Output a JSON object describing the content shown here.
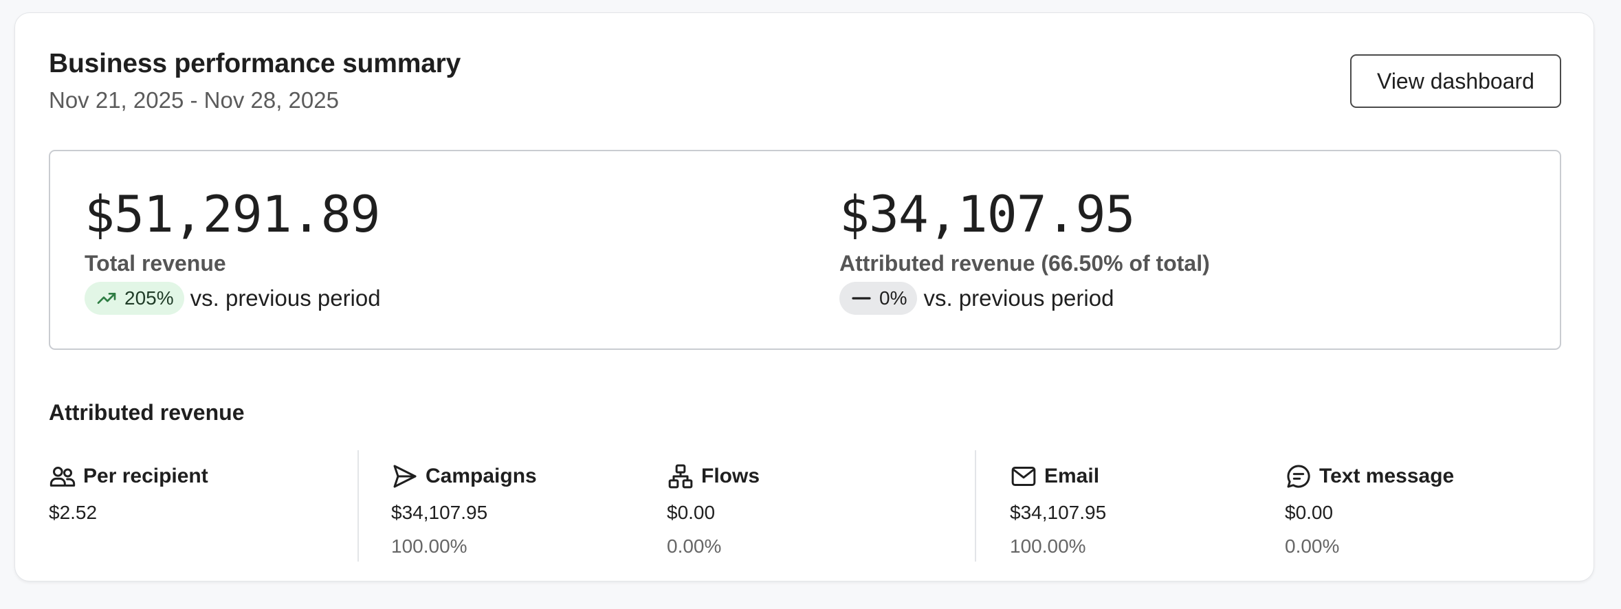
{
  "header": {
    "title": "Business performance summary",
    "date_range": "Nov 21, 2025 - Nov 28, 2025",
    "view_button_label": "View dashboard"
  },
  "summary": {
    "total": {
      "value": "$51,291.89",
      "label": "Total revenue",
      "change": "205%",
      "change_icon": "trend-up-icon",
      "change_color": "#e2f6e6",
      "compare_text": "vs. previous period"
    },
    "attributed": {
      "value": "$34,107.95",
      "label": "Attributed revenue (66.50% of total)",
      "change": "0%",
      "change_icon": "dash-icon",
      "change_color": "#e8e9eb",
      "compare_text": "vs. previous period"
    }
  },
  "attributed_section": {
    "title": "Attributed revenue",
    "stats": [
      {
        "label": "Per recipient",
        "icon": "users-icon",
        "value": "$2.52",
        "percent": ""
      },
      {
        "label": "Campaigns",
        "icon": "send-icon",
        "value": "$34,107.95",
        "percent": "100.00%"
      },
      {
        "label": "Flows",
        "icon": "flow-icon",
        "value": "$0.00",
        "percent": "0.00%"
      },
      {
        "label": "Email",
        "icon": "mail-icon",
        "value": "$34,107.95",
        "percent": "100.00%"
      },
      {
        "label": "Text message",
        "icon": "message-icon",
        "value": "$0.00",
        "percent": "0.00%"
      }
    ]
  }
}
